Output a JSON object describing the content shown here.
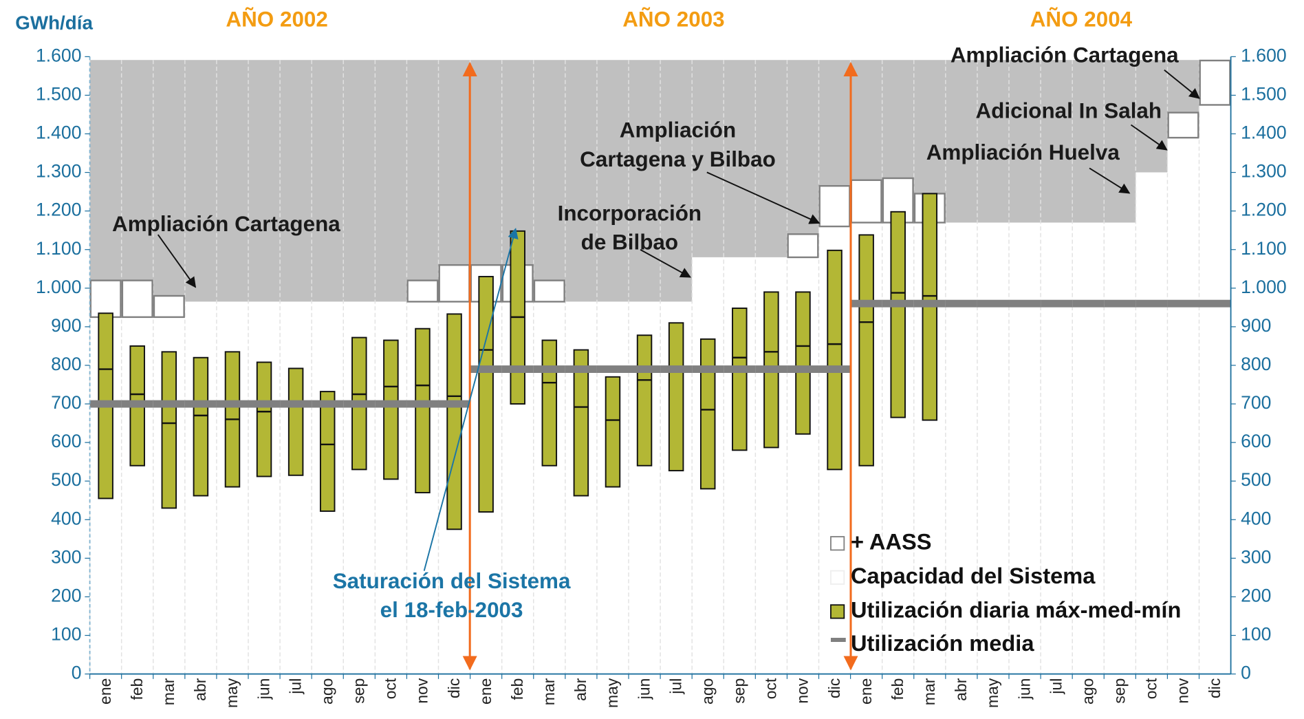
{
  "chart_data": {
    "type": "range-bar",
    "y_label": "GWh/día",
    "categories": [
      "ene",
      "feb",
      "mar",
      "abr",
      "may",
      "jun",
      "jul",
      "ago",
      "sep",
      "oct",
      "nov",
      "dic",
      "ene",
      "feb",
      "mar",
      "abr",
      "may",
      "jun",
      "jul",
      "ago",
      "sep",
      "oct",
      "nov",
      "dic",
      "ene",
      "feb",
      "mar",
      "abr",
      "may",
      "jun",
      "jul",
      "ago",
      "sep",
      "oct",
      "nov",
      "dic"
    ],
    "ylim": [
      0,
      1600
    ],
    "yticks": [
      0,
      100,
      200,
      300,
      400,
      500,
      600,
      700,
      800,
      900,
      {
        "value": 1000,
        "label": "1.000"
      },
      {
        "value": 1100,
        "label": "1.100"
      },
      {
        "value": 1200,
        "label": "1.200"
      },
      {
        "value": 1300,
        "label": "1.300"
      },
      {
        "value": 1400,
        "label": "1.400"
      },
      {
        "value": 1500,
        "label": "1.500"
      },
      {
        "value": 1600,
        "label": "1.600"
      }
    ],
    "y2lim": [
      0,
      1600
    ],
    "y2ticks": [
      0,
      100,
      200,
      300,
      400,
      500,
      600,
      700,
      800,
      900,
      {
        "value": 1000,
        "label": "1.000"
      },
      {
        "value": 1100,
        "label": "1.100"
      },
      {
        "value": 1200,
        "label": "1.200"
      },
      {
        "value": 1300,
        "label": "1.300"
      },
      {
        "value": 1400,
        "label": "1.400"
      },
      {
        "value": 1500,
        "label": "1.500"
      },
      {
        "value": 1600,
        "label": "1.600"
      }
    ],
    "series": [
      {
        "name": "+ AASS",
        "color": "#ffffff",
        "stroke": "#808080",
        "values": [
          95,
          95,
          55,
          null,
          null,
          null,
          null,
          null,
          null,
          null,
          55,
          95,
          95,
          95,
          55,
          null,
          null,
          null,
          null,
          null,
          null,
          null,
          60,
          105,
          110,
          115,
          75,
          null,
          null,
          null,
          null,
          null,
          null,
          null,
          65,
          115
        ]
      },
      {
        "name": "Capacidad del Sistema",
        "color": "#ffffff",
        "values": [
          925,
          925,
          925,
          965,
          965,
          965,
          965,
          965,
          965,
          965,
          965,
          965,
          965,
          965,
          965,
          965,
          965,
          965,
          965,
          1080,
          1080,
          1080,
          1080,
          1160,
          1170,
          1170,
          1170,
          1170,
          1170,
          1170,
          1170,
          1170,
          1170,
          1300,
          1390,
          1475
        ]
      },
      {
        "name": "Utilización diaria máx-med-mín",
        "color": "#b3b735",
        "max": [
          935,
          850,
          835,
          820,
          835,
          808,
          792,
          732,
          872,
          865,
          895,
          933,
          1030,
          1148,
          865,
          840,
          770,
          878,
          910,
          868,
          948,
          990,
          990,
          1098,
          1138,
          1198,
          1245
        ],
        "mean": [
          790,
          725,
          650,
          670,
          660,
          680,
          700,
          595,
          725,
          745,
          748,
          720,
          840,
          925,
          755,
          692,
          658,
          762,
          790,
          685,
          820,
          835,
          850,
          855,
          912,
          988,
          980
        ],
        "min": [
          455,
          540,
          430,
          462,
          485,
          512,
          515,
          422,
          530,
          505,
          470,
          375,
          420,
          700,
          540,
          462,
          485,
          540,
          527,
          480,
          580,
          587,
          622,
          530,
          540,
          665,
          658
        ]
      },
      {
        "name": "Utilización media",
        "color": "#808080",
        "values": [
          700,
          700,
          700,
          700,
          700,
          700,
          700,
          700,
          700,
          700,
          700,
          700,
          790,
          790,
          790,
          790,
          790,
          790,
          790,
          790,
          790,
          790,
          790,
          790,
          960,
          960,
          960,
          960,
          960,
          960,
          960,
          960,
          960,
          960,
          960,
          960
        ]
      }
    ],
    "annotations": [
      {
        "lines": [
          "AÑO 2002"
        ],
        "color": "#f39c12"
      },
      {
        "lines": [
          "AÑO 2003"
        ],
        "color": "#f39c12"
      },
      {
        "lines": [
          "AÑO 2004"
        ],
        "color": "#f39c12"
      },
      {
        "lines": [
          "Ampliación Cartagena"
        ],
        "color": "#1a1a1a"
      },
      {
        "lines": [
          "Incorporación",
          "de Bilbao"
        ],
        "color": "#1a1a1a"
      },
      {
        "lines": [
          "Ampliación",
          "Cartagena y Bilbao"
        ],
        "color": "#1a1a1a"
      },
      {
        "lines": [
          "Ampliación Huelva"
        ],
        "color": "#1a1a1a"
      },
      {
        "lines": [
          "Adicional In Salah"
        ],
        "color": "#1a1a1a"
      },
      {
        "lines": [
          "Ampliación Cartagena"
        ],
        "color": "#1a1a1a"
      },
      {
        "lines": [
          "Saturación del Sistema",
          "el 18-feb-2003"
        ],
        "color": "#1b75a6"
      }
    ],
    "legend": "lower right"
  }
}
